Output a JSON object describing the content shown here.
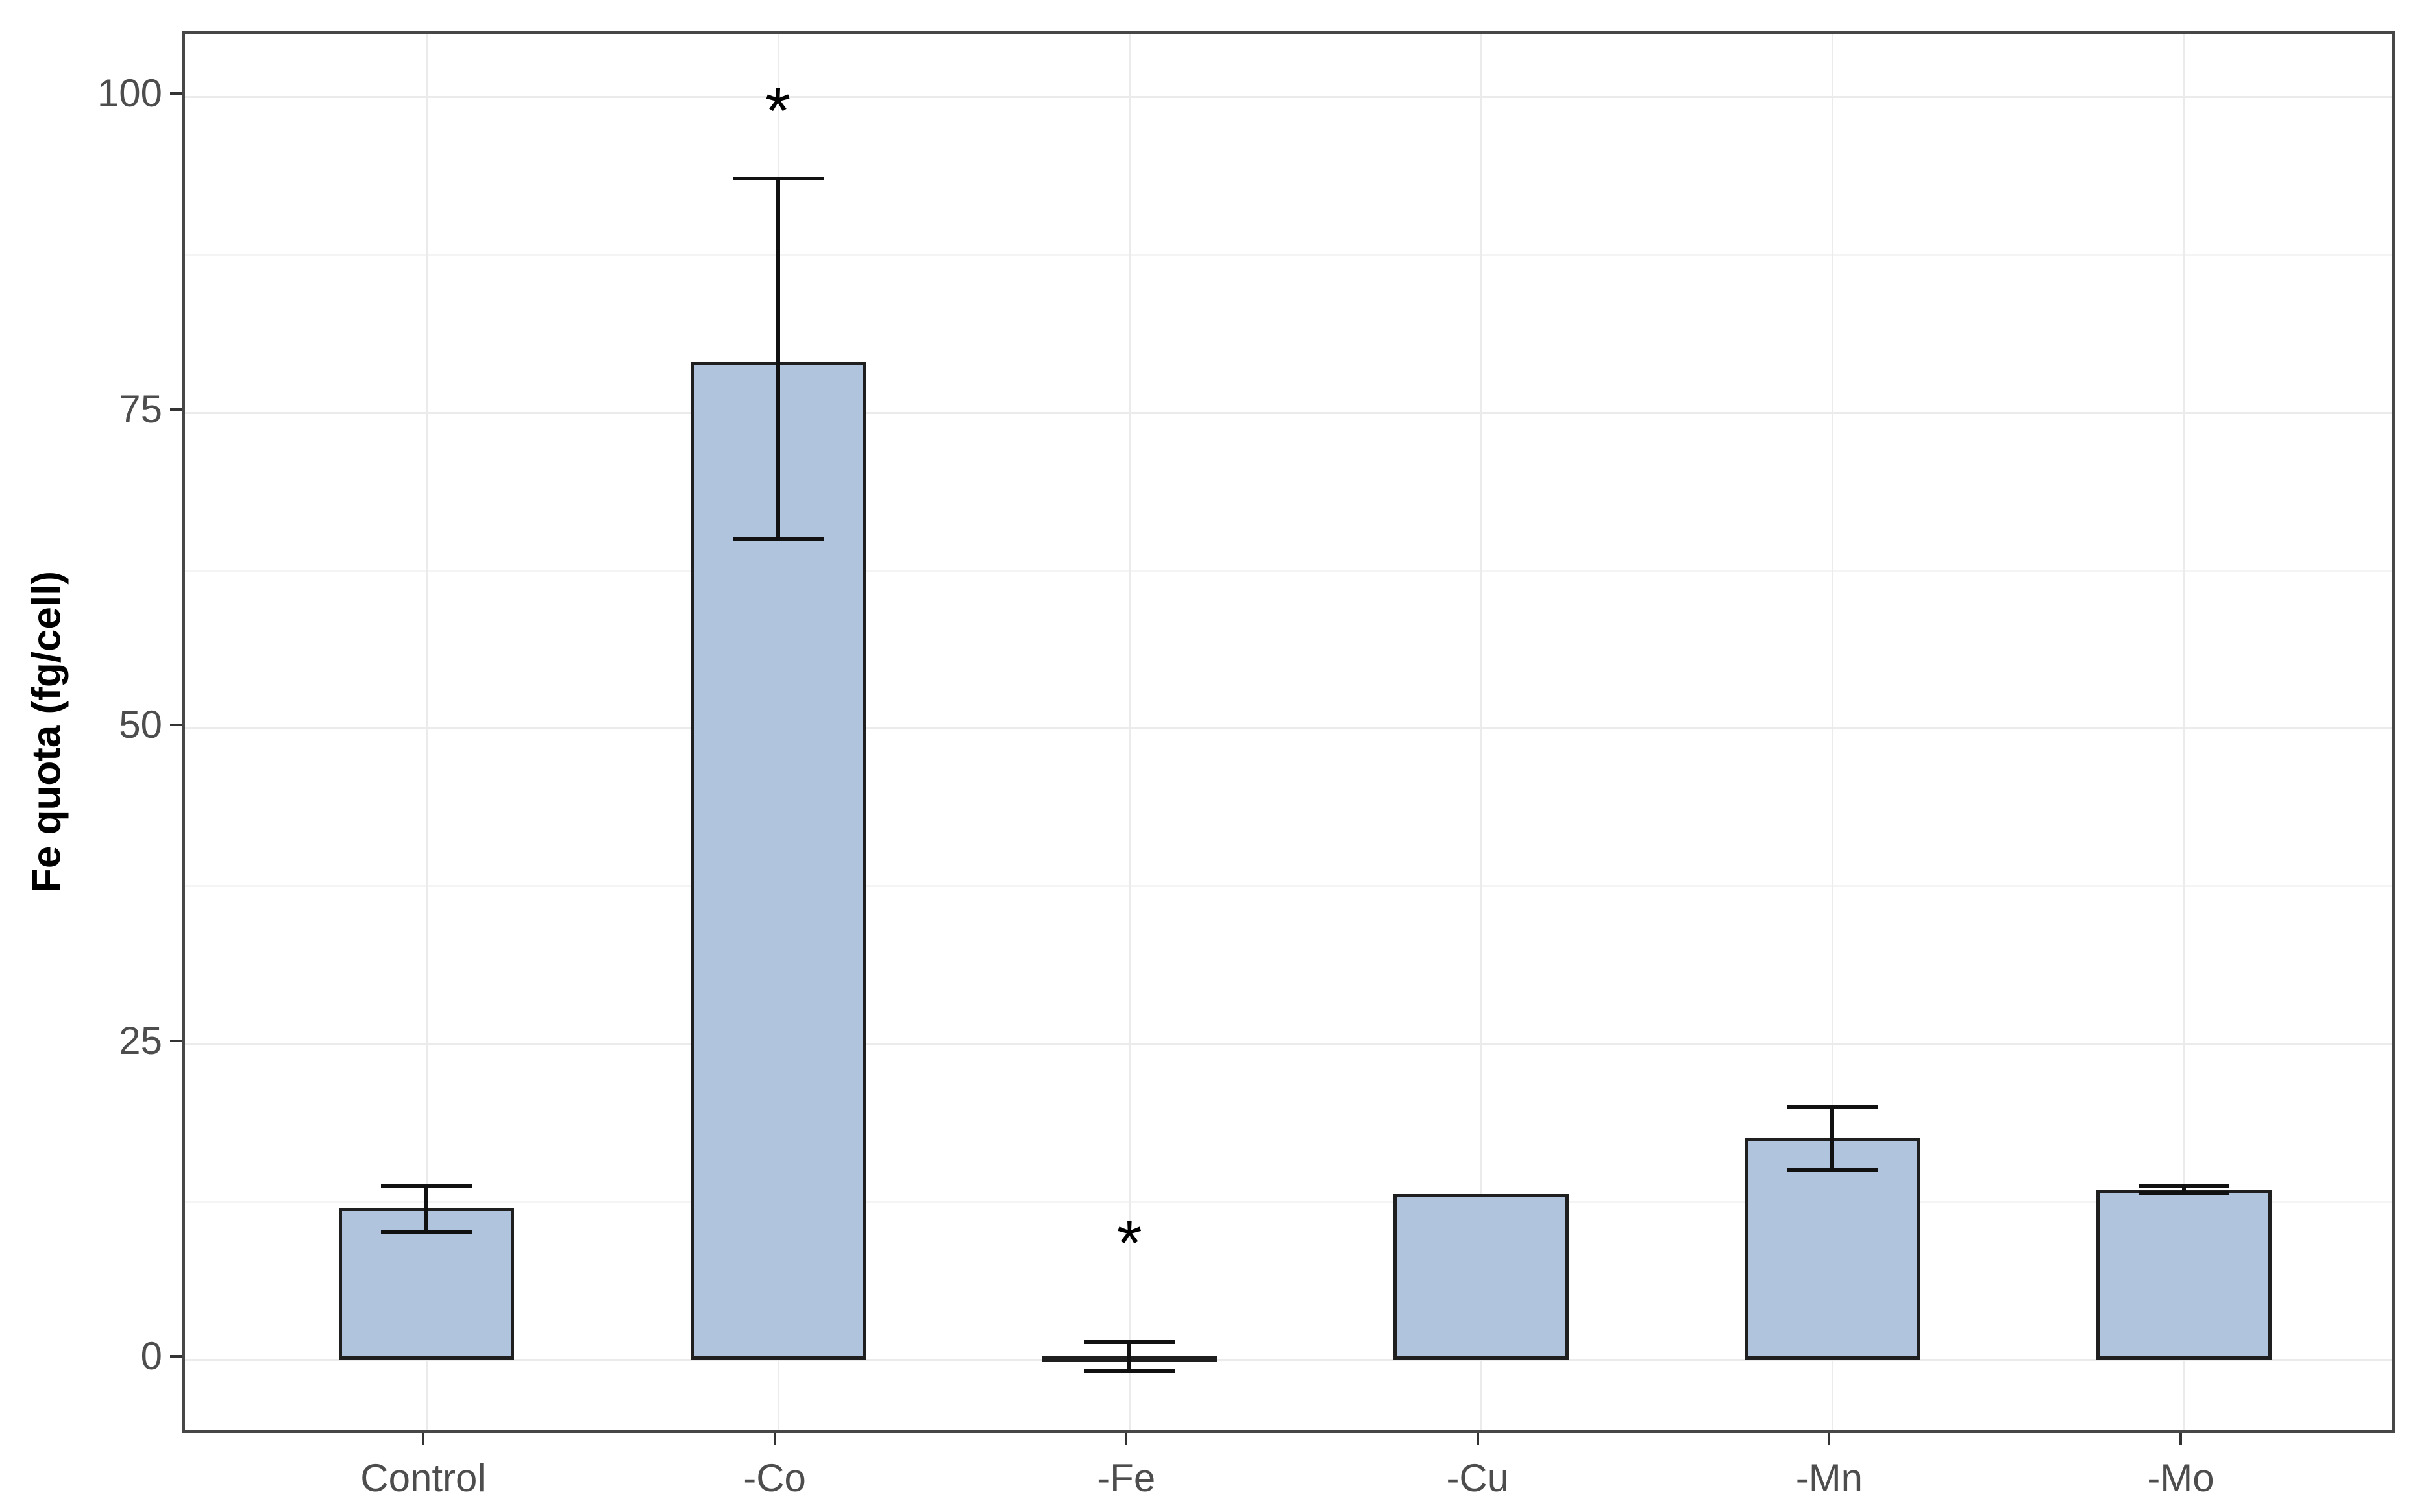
{
  "figure": {
    "y_axis_title": "Fe quota (fg/cell)",
    "significance_marker": "*"
  },
  "chart_data": {
    "type": "bar",
    "title": "",
    "xlabel": "",
    "ylabel": "Fe quota (fg/cell)",
    "categories": [
      "Control",
      "-Co",
      "-Fe",
      "-Cu",
      "-Mn",
      "-Mo"
    ],
    "values": [
      12.0,
      79.0,
      0.3,
      13.1,
      17.5,
      13.4
    ],
    "error_bars": {
      "ymin": [
        10.1,
        65.0,
        -0.9,
        null,
        15.0,
        13.2
      ],
      "ymax": [
        13.7,
        93.5,
        1.4,
        null,
        20.0,
        13.7
      ]
    },
    "significance": [
      {
        "category": "-Co",
        "marker": "*",
        "y": 99.5
      },
      {
        "category": "-Fe",
        "marker": "*",
        "y": 9.8
      }
    ],
    "yticks": [
      0,
      25,
      50,
      75,
      100
    ],
    "minor_gridline_values": [
      12.5,
      37.5,
      62.5,
      87.5
    ],
    "ylim": [
      -6,
      105
    ],
    "grid": "on",
    "legend": "none",
    "units": "fg/cell"
  },
  "style": {
    "bar_fill": "#b0c4de",
    "bar_outline": "#1f1f1f",
    "error_bar_color": "#111111",
    "major_grid_color": "#ebebeb",
    "minor_grid_color": "#f4f4f4",
    "panel_border_color": "#474747",
    "tick_color": "#333333",
    "axis_text_color": "#4d4d4d",
    "axis_title_color": "#000000",
    "background": "#ffffff"
  }
}
